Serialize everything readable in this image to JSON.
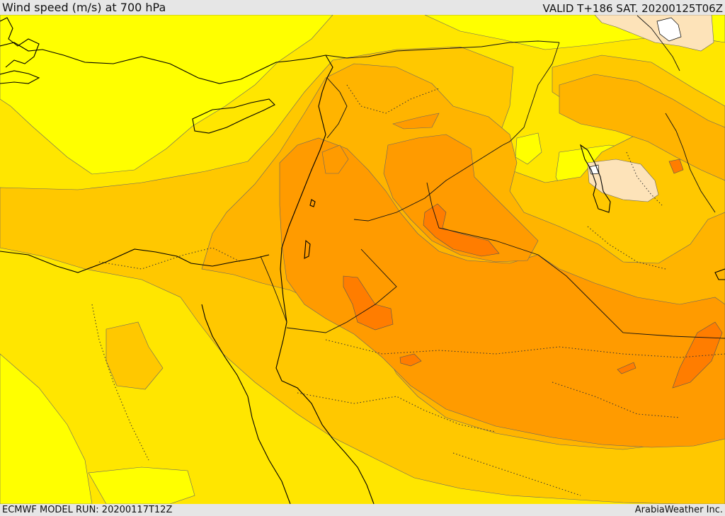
{
  "header": {
    "title": "Wind speed (m/s) at 700 hPa",
    "valid": "VALID T+186 SAT. 20200125T06Z"
  },
  "footer": {
    "model_run": "ECMWF MODEL RUN: 20200117T12Z",
    "credit": "ArabiaWeather Inc."
  },
  "map": {
    "region": "Middle East and Eastern Mediterranean",
    "field": "wind speed",
    "level": "700 hPa",
    "colors": {
      "bright_yellow": "#ffff00",
      "yellow": "#ffe600",
      "yellow_orange": "#ffc800",
      "orange": "#ffb400",
      "dark_orange": "#ff9b00",
      "deep_orange": "#ff7d00",
      "light_peach": "#fde3b9",
      "coastline": "#000000",
      "contour": "#555555"
    }
  }
}
